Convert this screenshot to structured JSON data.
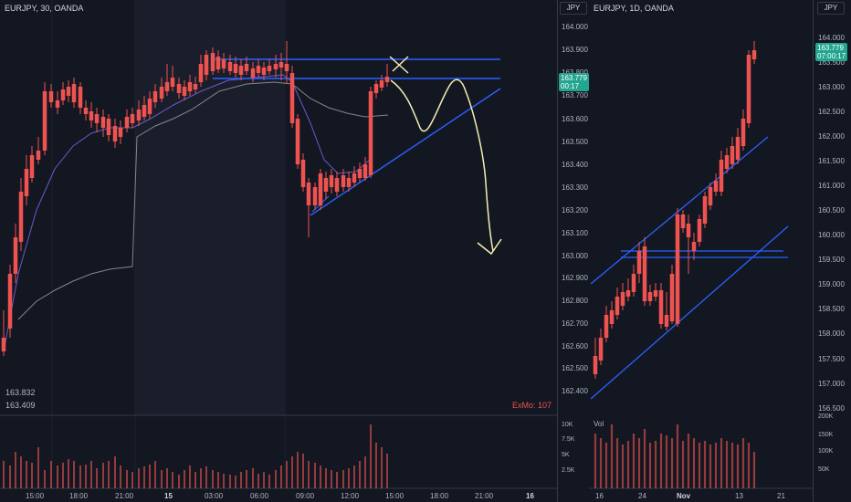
{
  "left": {
    "header": "EURJPY, 30, OANDA",
    "unit": "JPY",
    "price_labels": [
      "164.000",
      "163.900",
      "163.800",
      "163.700",
      "163.600",
      "163.500",
      "163.400",
      "163.300",
      "163.200",
      "163.100",
      "163.000",
      "162.900",
      "162.800",
      "162.700",
      "162.600",
      "162.500",
      "162.400"
    ],
    "last_price": "163.779",
    "countdown": "00:17",
    "stat_high": "163.832",
    "stat_low": "163.409",
    "indicator": "ExMo: 107",
    "time_labels": [
      "15:00",
      "18:00",
      "21:00",
      "15",
      "03:00",
      "06:00",
      "09:00",
      "12:00",
      "15:00",
      "18:00",
      "21:00",
      "16"
    ],
    "volume_labels": [
      "10K",
      "7.5K",
      "5K",
      "2.5K"
    ]
  },
  "right": {
    "header": "EURJPY, 1D, OANDA",
    "unit": "JPY",
    "price_labels": [
      "164.000",
      "163.500",
      "163.000",
      "162.500",
      "162.000",
      "161.500",
      "161.000",
      "160.500",
      "160.000",
      "159.500",
      "159.000",
      "158.500",
      "158.000",
      "157.500",
      "157.000",
      "156.500"
    ],
    "last_price": "163.779",
    "countdown": "07:00:17",
    "volume_label": "Vol",
    "volume_labels": [
      "200K",
      "150K",
      "100K",
      "50K"
    ],
    "time_labels": [
      "16",
      "24",
      "Nov",
      "13",
      "21"
    ]
  },
  "colors": {
    "up": "#26a69a",
    "down": "#ef5350",
    "trendline": "#2962ff",
    "drawing": "#f5f0b0",
    "background": "#131722"
  }
}
